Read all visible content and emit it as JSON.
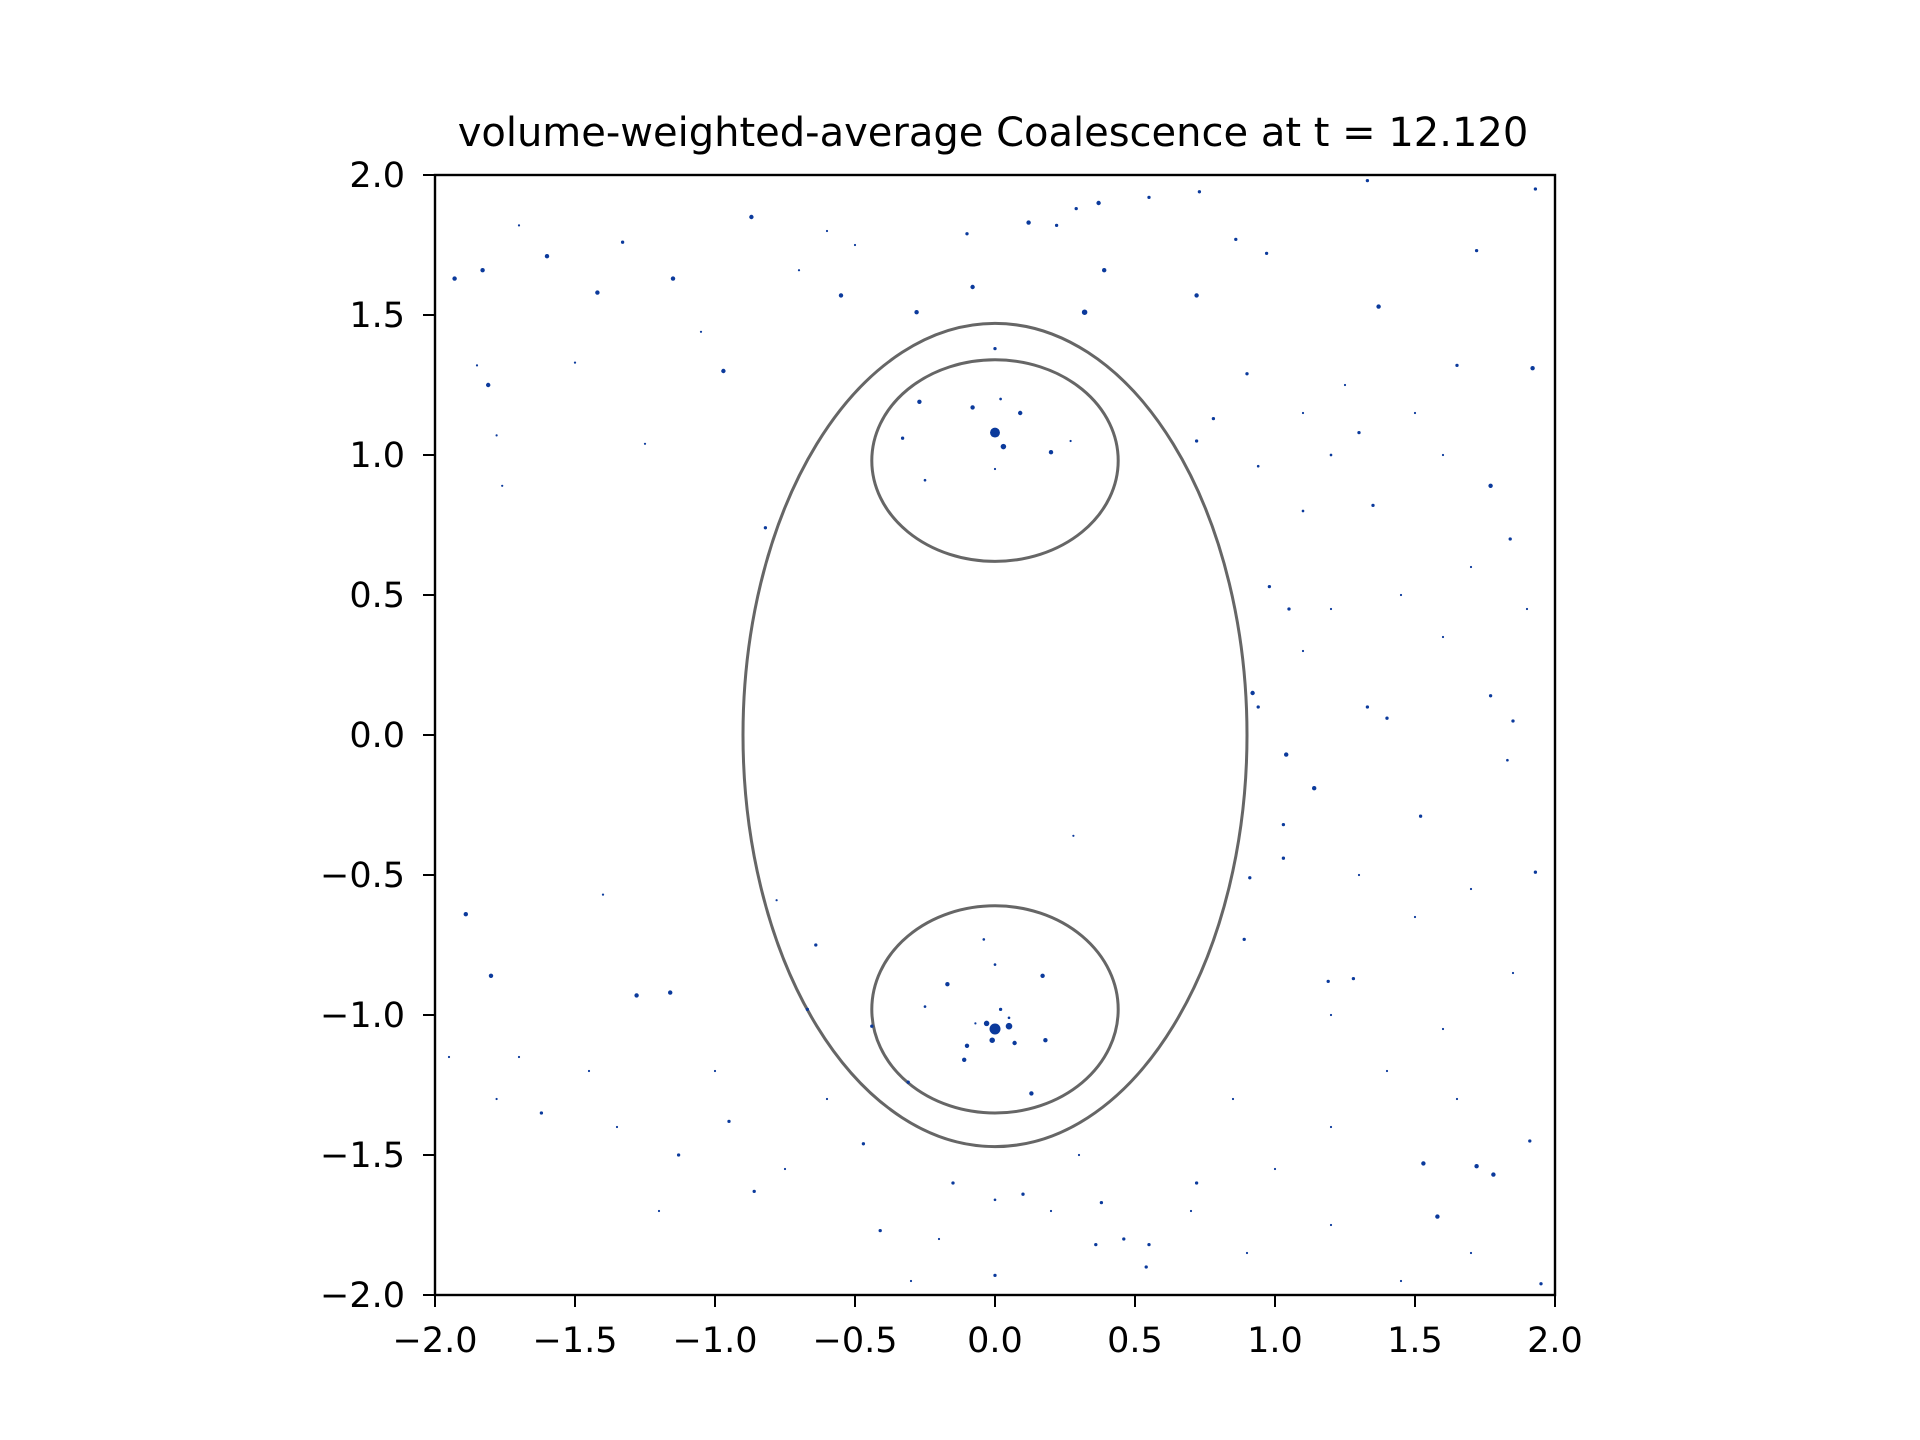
{
  "chart_data": {
    "type": "scatter",
    "title": "volume-weighted-average Coalescence at t = 12.120",
    "xlabel": "",
    "ylabel": "",
    "xlim": [
      -2.0,
      2.0
    ],
    "ylim": [
      -2.0,
      2.0
    ],
    "grid": false,
    "legend": "none",
    "xticks": [
      -2.0,
      -1.5,
      -1.0,
      -0.5,
      0.0,
      0.5,
      1.0,
      1.5,
      2.0
    ],
    "yticks": [
      -2.0,
      -1.5,
      -1.0,
      -0.5,
      0.0,
      0.5,
      1.0,
      1.5,
      2.0
    ],
    "xtick_labels": [
      "−2.0",
      "−1.5",
      "−1.0",
      "−0.5",
      "0.0",
      "0.5",
      "1.0",
      "1.5",
      "2.0"
    ],
    "ytick_labels": [
      "−2.0",
      "−1.5",
      "−1.0",
      "−0.5",
      "0.0",
      "0.5",
      "1.0",
      "1.5",
      "2.0"
    ],
    "point_color": "#0b3a9c",
    "contour_color": "#666666",
    "contours": [
      {
        "cx": 0.0,
        "cy": 0.0,
        "rx": 0.9,
        "ry": 1.47
      },
      {
        "cx": 0.0,
        "cy": 0.98,
        "rx": 0.44,
        "ry": 0.36
      },
      {
        "cx": 0.0,
        "cy": -0.98,
        "rx": 0.44,
        "ry": 0.37
      }
    ],
    "points": [
      [
        0.0,
        1.08,
        4.5
      ],
      [
        0.03,
        1.03,
        2.5
      ],
      [
        -0.08,
        1.17,
        2
      ],
      [
        0.09,
        1.15,
        2
      ],
      [
        0.2,
        1.01,
        2
      ],
      [
        -0.27,
        1.19,
        2
      ],
      [
        -0.33,
        1.06,
        1.5
      ],
      [
        0.02,
        1.2,
        1.2
      ],
      [
        -0.25,
        0.91,
        1.2
      ],
      [
        0.0,
        0.95,
        1
      ],
      [
        0.0,
        1.38,
        1.5
      ],
      [
        0.0,
        -1.05,
        5
      ],
      [
        0.05,
        -1.04,
        3
      ],
      [
        -0.03,
        -1.03,
        2.5
      ],
      [
        -0.01,
        -1.09,
        2.5
      ],
      [
        0.07,
        -1.1,
        2
      ],
      [
        -0.1,
        -1.11,
        2
      ],
      [
        -0.11,
        -1.16,
        2
      ],
      [
        0.17,
        -0.86,
        2
      ],
      [
        0.18,
        -1.09,
        2
      ],
      [
        -0.17,
        -0.89,
        2
      ],
      [
        0.13,
        -1.28,
        2
      ],
      [
        0.02,
        -0.98,
        1.5
      ],
      [
        -0.04,
        -0.73,
        1.2
      ],
      [
        -0.25,
        -0.97,
        1.2
      ],
      [
        0.0,
        -0.82,
        1.2
      ],
      [
        -0.44,
        -1.04,
        1.5
      ],
      [
        -0.31,
        -1.24,
        1.5
      ],
      [
        0.05,
        -1.01,
        1.2
      ],
      [
        -0.07,
        -1.03,
        1
      ],
      [
        -1.93,
        1.63,
        2
      ],
      [
        -1.83,
        1.66,
        2
      ],
      [
        -1.81,
        1.25,
        2
      ],
      [
        -1.6,
        1.71,
        2
      ],
      [
        -1.42,
        1.58,
        2
      ],
      [
        -1.33,
        1.76,
        1.5
      ],
      [
        -1.15,
        1.63,
        2
      ],
      [
        -0.97,
        1.3,
        2
      ],
      [
        -0.87,
        1.85,
        2
      ],
      [
        -0.55,
        1.57,
        2
      ],
      [
        -0.28,
        1.51,
        2
      ],
      [
        -0.1,
        1.79,
        1.5
      ],
      [
        -0.08,
        1.6,
        2
      ],
      [
        0.12,
        1.83,
        2
      ],
      [
        0.22,
        1.82,
        1.5
      ],
      [
        0.32,
        1.51,
        2.5
      ],
      [
        0.29,
        1.88,
        1.5
      ],
      [
        0.37,
        1.9,
        2
      ],
      [
        0.39,
        1.66,
        2
      ],
      [
        0.55,
        1.92,
        1.5
      ],
      [
        0.73,
        1.94,
        1.5
      ],
      [
        0.72,
        1.57,
        2
      ],
      [
        0.86,
        1.77,
        1.5
      ],
      [
        0.97,
        1.72,
        1.5
      ],
      [
        0.9,
        1.29,
        1.5
      ],
      [
        0.78,
        1.13,
        1.5
      ],
      [
        0.72,
        1.05,
        1.5
      ],
      [
        1.3,
        1.08,
        1.5
      ],
      [
        1.37,
        1.53,
        2
      ],
      [
        1.35,
        0.82,
        1.5
      ],
      [
        1.72,
        1.73,
        1.5
      ],
      [
        1.65,
        1.32,
        1.5
      ],
      [
        1.77,
        0.89,
        2
      ],
      [
        1.84,
        0.7,
        1.5
      ],
      [
        1.93,
        1.95,
        1.5
      ],
      [
        1.92,
        1.31,
        2
      ],
      [
        1.33,
        1.98,
        1.5
      ],
      [
        1.1,
        0.8,
        1.2
      ],
      [
        1.2,
        1.0,
        1.2
      ],
      [
        0.94,
        0.96,
        1.2
      ],
      [
        0.98,
        0.53,
        1.5
      ],
      [
        1.05,
        0.45,
        1.5
      ],
      [
        0.92,
        0.15,
        2
      ],
      [
        0.94,
        0.1,
        1.5
      ],
      [
        1.04,
        -0.07,
        2
      ],
      [
        1.14,
        -0.19,
        2
      ],
      [
        1.33,
        0.1,
        1.5
      ],
      [
        1.4,
        0.06,
        1.5
      ],
      [
        1.52,
        -0.29,
        1.5
      ],
      [
        1.77,
        0.14,
        1.5
      ],
      [
        1.85,
        0.05,
        1.5
      ],
      [
        1.83,
        -0.09,
        1.2
      ],
      [
        1.03,
        -0.32,
        1.5
      ],
      [
        1.03,
        -0.44,
        1.5
      ],
      [
        0.91,
        -0.51,
        1.5
      ],
      [
        1.19,
        -0.88,
        1.5
      ],
      [
        1.28,
        -0.87,
        1.5
      ],
      [
        1.53,
        -1.53,
        2
      ],
      [
        1.58,
        -1.72,
        2
      ],
      [
        1.72,
        -1.54,
        2
      ],
      [
        1.78,
        -1.57,
        2
      ],
      [
        1.93,
        -0.49,
        1.5
      ],
      [
        1.91,
        -1.45,
        1.5
      ],
      [
        1.95,
        -1.96,
        1.5
      ],
      [
        0.89,
        -0.73,
        1.5
      ],
      [
        0.72,
        -1.6,
        1.5
      ],
      [
        0.55,
        -1.82,
        1.5
      ],
      [
        0.54,
        -1.9,
        1.5
      ],
      [
        0.46,
        -1.8,
        1.5
      ],
      [
        0.38,
        -1.67,
        1.5
      ],
      [
        0.36,
        -1.82,
        1.5
      ],
      [
        0.1,
        -1.64,
        1.5
      ],
      [
        0.0,
        -1.93,
        1.5
      ],
      [
        0.0,
        -1.66,
        1.2
      ],
      [
        -0.15,
        -1.6,
        1.5
      ],
      [
        -0.41,
        -1.77,
        1.5
      ],
      [
        -0.47,
        -1.46,
        1.5
      ],
      [
        -0.64,
        -0.75,
        1.5
      ],
      [
        -0.67,
        -0.98,
        1.5
      ],
      [
        -0.82,
        0.74,
        1.5
      ],
      [
        -1.89,
        -0.64,
        2
      ],
      [
        -1.8,
        -0.86,
        2
      ],
      [
        -1.16,
        -0.92,
        2
      ],
      [
        -1.28,
        -0.93,
        2
      ],
      [
        -1.62,
        -1.35,
        1.5
      ],
      [
        -0.95,
        -1.38,
        1.5
      ],
      [
        -0.86,
        -1.63,
        1.5
      ],
      [
        -1.13,
        -1.5,
        1.5
      ],
      [
        -1.76,
        0.89,
        1
      ],
      [
        -1.78,
        1.07,
        1
      ],
      [
        -1.7,
        1.82,
        1
      ],
      [
        -1.85,
        1.32,
        1
      ],
      [
        -1.05,
        1.44,
        1
      ],
      [
        -0.6,
        1.8,
        1
      ],
      [
        -0.7,
        1.66,
        1
      ],
      [
        -0.5,
        1.75,
        1
      ],
      [
        -1.5,
        1.33,
        1
      ],
      [
        -1.25,
        1.04,
        1
      ],
      [
        1.1,
        1.15,
        1
      ],
      [
        1.25,
        1.25,
        1
      ],
      [
        1.5,
        1.15,
        1
      ],
      [
        1.6,
        1.0,
        1
      ],
      [
        1.7,
        0.6,
        1
      ],
      [
        1.45,
        0.5,
        1
      ],
      [
        1.2,
        0.45,
        1
      ],
      [
        1.1,
        0.3,
        1
      ],
      [
        1.6,
        0.35,
        1
      ],
      [
        1.9,
        0.45,
        1
      ],
      [
        1.3,
        -0.5,
        1
      ],
      [
        1.5,
        -0.65,
        1
      ],
      [
        1.7,
        -0.55,
        1
      ],
      [
        1.2,
        -1.0,
        1
      ],
      [
        1.4,
        -1.2,
        1
      ],
      [
        1.6,
        -1.05,
        1
      ],
      [
        1.85,
        -0.85,
        1
      ],
      [
        1.65,
        -1.3,
        1
      ],
      [
        1.2,
        -1.4,
        1
      ],
      [
        1.0,
        -1.55,
        1
      ],
      [
        0.85,
        -1.3,
        1
      ],
      [
        0.7,
        -1.7,
        1
      ],
      [
        0.9,
        -1.85,
        1
      ],
      [
        1.2,
        -1.75,
        1
      ],
      [
        1.45,
        -1.95,
        1
      ],
      [
        1.7,
        -1.85,
        1
      ],
      [
        0.3,
        -1.5,
        1
      ],
      [
        0.2,
        -1.7,
        1
      ],
      [
        -0.2,
        -1.8,
        1
      ],
      [
        -0.3,
        -1.95,
        1
      ],
      [
        -0.6,
        -1.3,
        1
      ],
      [
        -0.75,
        -1.55,
        1
      ],
      [
        -1.0,
        -1.2,
        1
      ],
      [
        -1.2,
        -1.7,
        1
      ],
      [
        -1.35,
        -1.4,
        1
      ],
      [
        -1.45,
        -1.2,
        1
      ],
      [
        -1.7,
        -1.15,
        1
      ],
      [
        -1.95,
        -1.15,
        1
      ],
      [
        -1.78,
        -1.3,
        1
      ],
      [
        -1.4,
        -0.57,
        1
      ],
      [
        0.28,
        -0.36,
        1
      ],
      [
        -0.78,
        -0.59,
        1
      ],
      [
        0.27,
        1.05,
        1
      ]
    ]
  }
}
